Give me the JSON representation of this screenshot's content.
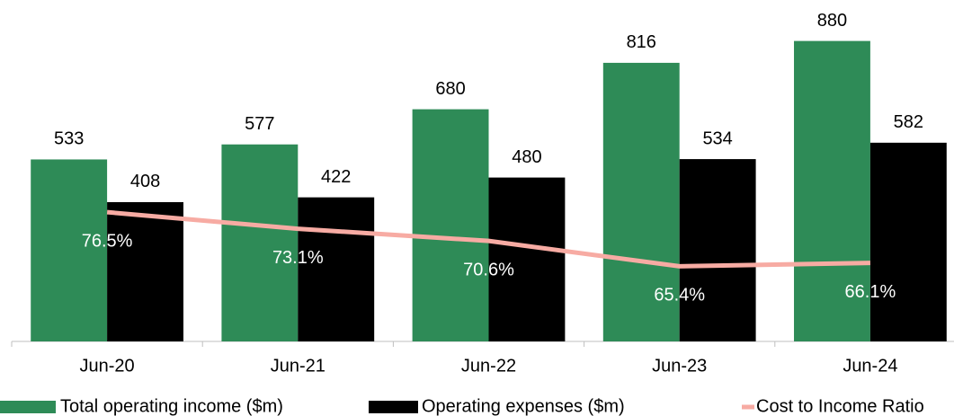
{
  "chart_data": {
    "type": "bar",
    "categories": [
      "Jun-20",
      "Jun-21",
      "Jun-22",
      "Jun-23",
      "Jun-24"
    ],
    "series": [
      {
        "name": "Total operating income ($m)",
        "color": "#2e8b57",
        "values": [
          533,
          577,
          680,
          816,
          880
        ]
      },
      {
        "name": "Operating expenses ($m)",
        "color": "#000000",
        "values": [
          408,
          422,
          480,
          534,
          582
        ]
      },
      {
        "name": "Cost to Income Ratio",
        "color": "#f7aba3",
        "type": "line",
        "axis": "y2",
        "values": [
          76.5,
          73.1,
          70.6,
          65.4,
          66.1
        ],
        "value_labels": [
          "76.5%",
          "73.1%",
          "70.6%",
          "65.4%",
          "66.1%"
        ]
      }
    ],
    "ylim": [
      0,
      1000
    ],
    "y2lim": [
      50,
      120
    ],
    "legend": "bottom"
  }
}
